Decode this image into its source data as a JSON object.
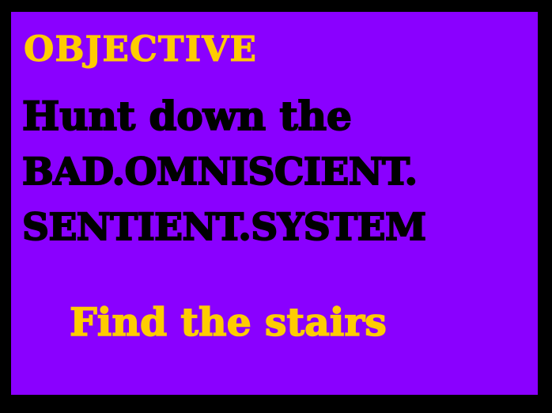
{
  "objective": {
    "heading": "OBJECTIVE",
    "lines": [
      "Hunt down the",
      "BAD.OMNISCIENT.",
      "SENTIENT.SYSTEM"
    ],
    "hint": "Find the stairs"
  },
  "colors": {
    "background": "#000000",
    "panel": "#8a00ff",
    "heading": "#ffcc00",
    "body_text": "#000000",
    "hint_text": "#ffcc00"
  }
}
